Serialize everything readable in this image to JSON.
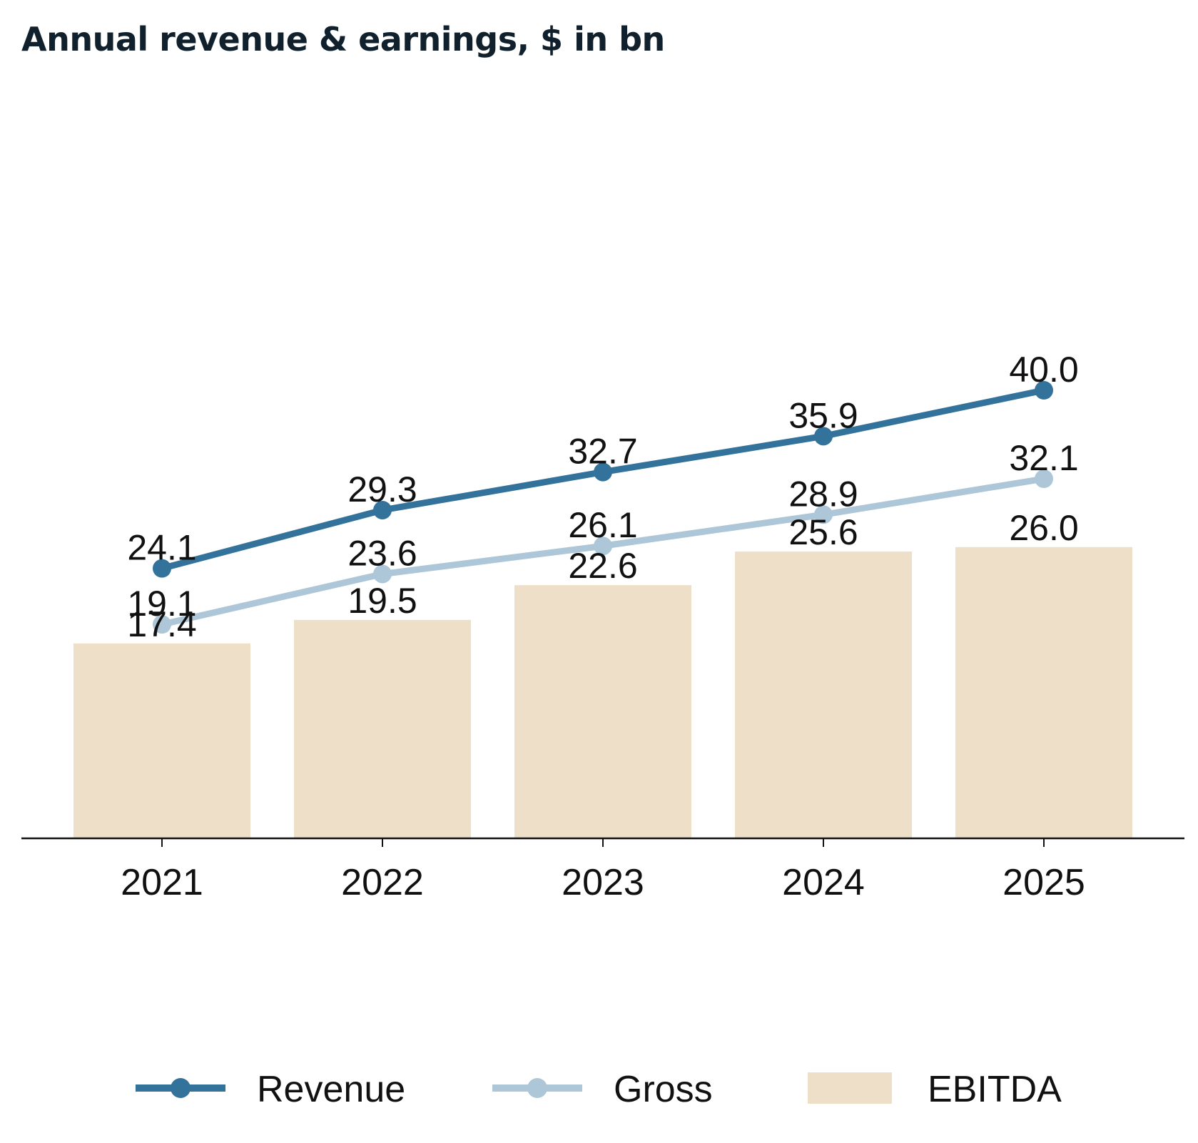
{
  "chart_data": {
    "type": "bar",
    "title": "Annual revenue & earnings, $ in bn",
    "xlabel": "",
    "ylabel": "",
    "categories": [
      "2021",
      "2022",
      "2023",
      "2024",
      "2025"
    ],
    "ylim": [
      0,
      44
    ],
    "grid": false,
    "legend_position": "bottom",
    "series": [
      {
        "name": "Revenue",
        "type": "line",
        "color": "#33729b",
        "values": [
          24.1,
          29.3,
          32.7,
          35.9,
          40.0
        ],
        "labels": [
          "24.1",
          "29.3",
          "32.7",
          "35.9",
          "40.0"
        ]
      },
      {
        "name": "Gross",
        "type": "line",
        "color": "#adc6d8",
        "values": [
          19.1,
          23.6,
          26.1,
          28.9,
          32.1
        ],
        "labels": [
          "19.1",
          "23.6",
          "26.1",
          "28.9",
          "32.1"
        ]
      },
      {
        "name": "EBITDA",
        "type": "bar",
        "color": "#eddfc8",
        "values": [
          17.4,
          19.5,
          22.6,
          25.6,
          26.0
        ],
        "labels": [
          "17.4",
          "19.5",
          "22.6",
          "25.6",
          "26.0"
        ]
      }
    ]
  }
}
